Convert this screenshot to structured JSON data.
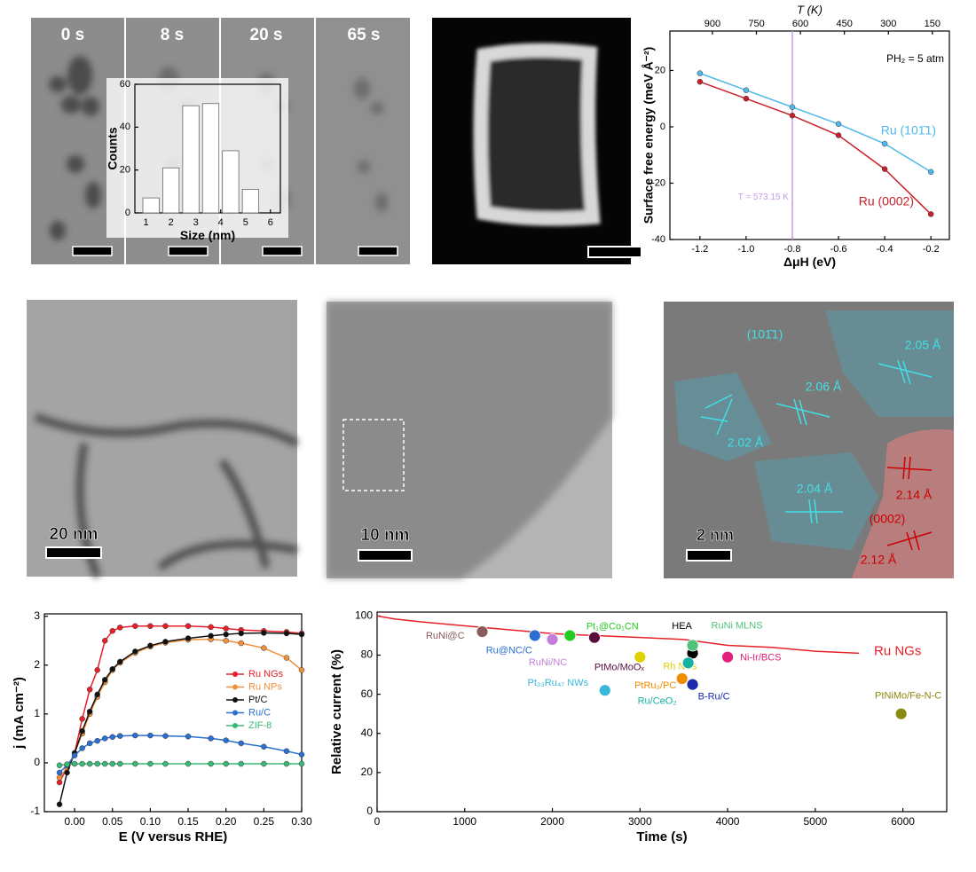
{
  "figure": {
    "time_labels": [
      "0 s",
      "8 s",
      "20 s",
      "65 s"
    ],
    "scale_bars": [
      "20 nm",
      "10 nm",
      "2 nm"
    ],
    "lattice_labels": [
      "(101̄1)",
      "2.05 Å",
      "2.06 Å",
      "2.02 Å",
      "2.04 Å",
      "2.14 Å",
      "(0002)",
      "2.12 Å"
    ]
  },
  "chart_data": [
    {
      "type": "line",
      "xlabel": "ΔμH (eV)",
      "ylabel": "Surface free energy (meV Å⁻²)",
      "x2label": "T (K)",
      "annotation": "PH₂ = 5 atm",
      "vline": -0.8,
      "vline_label": "T = 573.15 K",
      "vline_color": "#c79ce8",
      "x": [
        -1.2,
        -1,
        -0.8,
        -0.6,
        -0.4,
        -0.2
      ],
      "series": [
        {
          "name": "Ru (101̄1)",
          "color": "#4fb8e8",
          "values": [
            19,
            13,
            7,
            1,
            -6,
            -16
          ]
        },
        {
          "name": "Ru (0002)",
          "color": "#c8202a",
          "values": [
            16,
            10,
            4,
            -3,
            -15,
            -31
          ]
        }
      ],
      "xlim": [
        -1.33,
        -0.12
      ],
      "xticks": [
        -1.2,
        {
          "value": -1,
          "label": "-1.0"
        },
        -0.8,
        -0.6,
        -0.4,
        -0.2
      ],
      "ylim": [
        -40,
        34
      ],
      "yticks": [
        -40,
        -20,
        0,
        20
      ],
      "x2lim": [
        1045,
        92
      ],
      "x2ticks": [
        900,
        750,
        600,
        450,
        300,
        150
      ]
    },
    {
      "type": "histogram",
      "xlabel": "Size (nm)",
      "ylabel": "Counts",
      "bins": [
        0.8,
        1.6,
        2.4,
        3.2,
        4,
        4.8,
        5.6
      ],
      "values": [
        7,
        21,
        50,
        51,
        29,
        11
      ],
      "color": "#ffffff",
      "xlim": [
        0.55,
        6.4
      ],
      "xticks": [
        1,
        2,
        3,
        4,
        5,
        6
      ],
      "ylim": [
        0,
        60
      ],
      "yticks": [
        0,
        20,
        40,
        60
      ]
    },
    {
      "type": "line",
      "xlabel": "E (V versus RHE)",
      "ylabel": "j (mA cm⁻²)",
      "x": [
        -0.02,
        -0.01,
        0,
        0.01,
        0.02,
        0.03,
        0.04,
        0.05,
        0.06,
        0.08,
        0.1,
        0.12,
        0.15,
        0.18,
        0.2,
        0.22,
        0.25,
        0.28,
        0.3
      ],
      "series": [
        {
          "name": "Ru NGs",
          "color": "#e8202a",
          "values": [
            -0.4,
            -0.1,
            0.2,
            0.9,
            1.5,
            1.9,
            2.5,
            2.7,
            2.77,
            2.8,
            2.8,
            2.8,
            2.8,
            2.78,
            2.75,
            2.72,
            2.7,
            2.68,
            2.65
          ]
        },
        {
          "name": "Ru NPs",
          "color": "#f0903a",
          "values": [
            -0.3,
            -0.1,
            0.2,
            0.6,
            1,
            1.35,
            1.65,
            1.9,
            2.05,
            2.25,
            2.38,
            2.46,
            2.52,
            2.53,
            2.5,
            2.45,
            2.35,
            2.15,
            1.9
          ]
        },
        {
          "name": "Pt/C",
          "color": "#111111",
          "values": [
            -0.85,
            -0.2,
            0.2,
            0.65,
            1.05,
            1.4,
            1.7,
            1.92,
            2.07,
            2.28,
            2.4,
            2.48,
            2.55,
            2.6,
            2.63,
            2.65,
            2.66,
            2.65,
            2.63
          ]
        },
        {
          "name": "Ru/C",
          "color": "#2a6fd1",
          "values": [
            -0.2,
            -0.05,
            0.15,
            0.3,
            0.4,
            0.45,
            0.5,
            0.53,
            0.55,
            0.56,
            0.56,
            0.55,
            0.54,
            0.5,
            0.46,
            0.4,
            0.33,
            0.24,
            0.17
          ]
        },
        {
          "name": "ZIF-8",
          "color": "#3cb878",
          "values": [
            -0.05,
            -0.03,
            -0.02,
            -0.02,
            -0.02,
            -0.02,
            -0.02,
            -0.02,
            -0.02,
            -0.02,
            -0.02,
            -0.02,
            -0.02,
            -0.02,
            -0.02,
            -0.02,
            -0.02,
            -0.02,
            -0.02
          ]
        }
      ],
      "xlim": [
        -0.04,
        0.3
      ],
      "xticks": [
        {
          "value": 0,
          "label": "0.00"
        },
        0.05,
        {
          "value": 0.1,
          "label": "0.10"
        },
        0.15,
        {
          "value": 0.2,
          "label": "0.20"
        },
        0.25,
        {
          "value": 0.3,
          "label": "0.30"
        }
      ],
      "ylim": [
        -1,
        3.05
      ],
      "yticks": [
        -1,
        0,
        1,
        2,
        3
      ]
    },
    {
      "type": "scatter",
      "xlabel": "Time (s)",
      "ylabel": "Relative current (%)",
      "series": [
        {
          "name": "Ru NGs",
          "color": "#e8202a",
          "line": true,
          "x": [
            0,
            200,
            500,
            1000,
            1500,
            2000,
            2500,
            3000,
            3500,
            4000,
            4500,
            5000,
            5500
          ],
          "values": [
            100,
            98.5,
            97,
            95,
            93,
            91,
            90,
            89,
            88,
            85,
            84,
            82,
            81
          ]
        },
        {
          "name": "RuNi@C",
          "color": "#8b5a5a",
          "x": [
            1200
          ],
          "values": [
            92
          ]
        },
        {
          "name": "Ru@NC/C",
          "color": "#2a6fd1",
          "x": [
            1800
          ],
          "values": [
            90
          ]
        },
        {
          "name": "RuNi/NC",
          "color": "#c27fd8",
          "x": [
            2000
          ],
          "values": [
            88
          ]
        },
        {
          "name": "Pt₁@Co₁CN",
          "color": "#22cc22",
          "x": [
            2200
          ],
          "values": [
            90
          ]
        },
        {
          "name": "PtMo/MoOₓ",
          "color": "#5a0e3e",
          "x": [
            2480
          ],
          "values": [
            89
          ]
        },
        {
          "name": "HEA",
          "color": "#000000",
          "x": [
            3600
          ],
          "values": [
            81
          ]
        },
        {
          "name": "RuNi MLNS",
          "color": "#4fc37a",
          "x": [
            3600
          ],
          "values": [
            85
          ]
        },
        {
          "name": "Rh NSs",
          "color": "#e0d000",
          "x": [
            3000
          ],
          "values": [
            79
          ]
        },
        {
          "name": "Pt₃₃Ru₄₇ NWs",
          "color": "#36b8d8",
          "x": [
            2600
          ],
          "values": [
            62
          ]
        },
        {
          "name": "PtRu₃/PC",
          "color": "#f08c00",
          "x": [
            3480
          ],
          "values": [
            68
          ]
        },
        {
          "name": "Ru/CeO₂",
          "color": "#18b0a0",
          "x": [
            3550
          ],
          "values": [
            76
          ]
        },
        {
          "name": "B-Ru/C",
          "color": "#1a2aa8",
          "x": [
            3600
          ],
          "values": [
            65
          ]
        },
        {
          "name": "Ni-Ir/BCS",
          "color": "#e0207a",
          "x": [
            4000
          ],
          "values": [
            79
          ]
        },
        {
          "name": "PtNiMo/Fe-N-C",
          "color": "#8a8a10",
          "x": [
            5980
          ],
          "values": [
            50
          ]
        }
      ],
      "xlim": [
        0,
        6500
      ],
      "xticks": [
        0,
        1000,
        2000,
        3000,
        4000,
        5000,
        6000
      ],
      "ylim": [
        0,
        102
      ],
      "yticks": [
        0,
        20,
        40,
        60,
        80,
        100
      ]
    }
  ]
}
